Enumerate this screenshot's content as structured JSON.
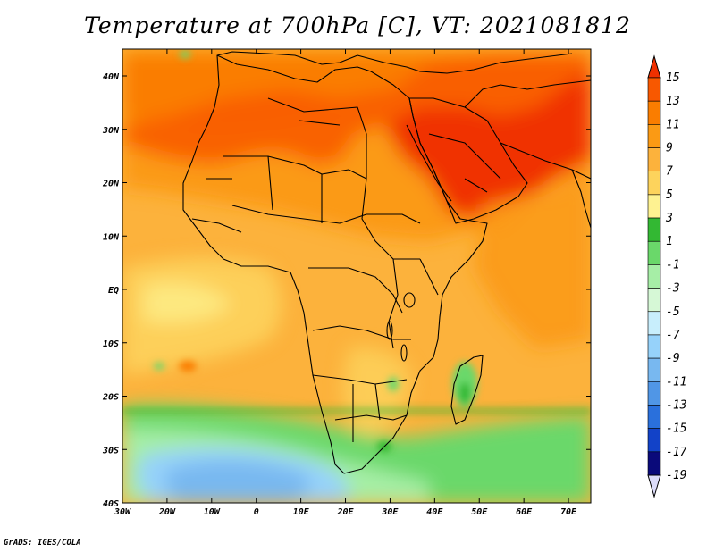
{
  "title": "Temperature at 700hPa [C], VT: 2021081812",
  "credit": "GrADS: IGES/COLA",
  "map": {
    "lon_labels": [
      "30W",
      "20W",
      "10W",
      "0",
      "10E",
      "20E",
      "30E",
      "40E",
      "50E",
      "60E",
      "70E"
    ],
    "lat_labels": [
      "40N",
      "30N",
      "20N",
      "10N",
      "EQ",
      "10S",
      "20S",
      "30S",
      "40S"
    ]
  },
  "colorbar": {
    "levels": [
      "15",
      "13",
      "11",
      "9",
      "7",
      "5",
      "3",
      "1",
      "-1",
      "-3",
      "-5",
      "-7",
      "-9",
      "-11",
      "-13",
      "-15",
      "-17",
      "-19"
    ],
    "colors": [
      "#f03000",
      "#f85800",
      "#fa7d00",
      "#fb9a14",
      "#fcb23c",
      "#fdd35c",
      "#fef291",
      "#33b833",
      "#6ad86a",
      "#a6eea6",
      "#d6f8d6",
      "#c8eefc",
      "#96d2fa",
      "#78b8f0",
      "#5096e6",
      "#2a70dc",
      "#1242c8",
      "#0a0a7a",
      "#dcdcfa"
    ]
  }
}
